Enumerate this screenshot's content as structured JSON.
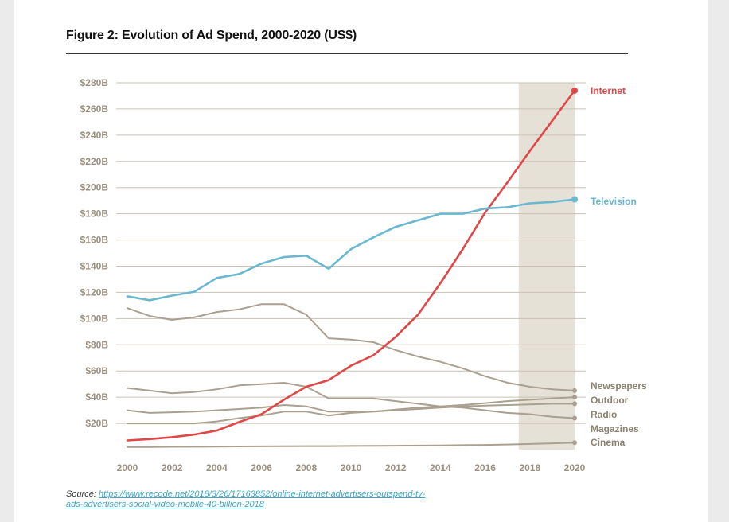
{
  "figure": {
    "title": "Figure 2: Evolution of Ad Spend, 2000-2020 (US$)",
    "source_prefix": "Source: ",
    "source_link": "https://www.recode.net/2018/3/26/17163852/online-internet-advertisers-outspend-tv-ads-advertisers-social-video-mobile-40-billion-2018"
  },
  "chart_data": {
    "type": "line",
    "title": "Figure 2: Evolution of Ad Spend, 2000-2020 (US$)",
    "xlabel": "",
    "ylabel": "",
    "x": [
      2000,
      2001,
      2002,
      2003,
      2004,
      2005,
      2006,
      2007,
      2008,
      2009,
      2010,
      2011,
      2012,
      2013,
      2014,
      2015,
      2016,
      2017,
      2018,
      2019,
      2020
    ],
    "xticks": [
      "2000",
      "2002",
      "2004",
      "2006",
      "2008",
      "2010",
      "2012",
      "2014",
      "2016",
      "2018",
      "2020"
    ],
    "ylim": [
      0,
      280
    ],
    "yticks": [
      "$20B",
      "$40B",
      "$60B",
      "$80B",
      "$100B",
      "$120B",
      "$140B",
      "$160B",
      "$180B",
      "$200B",
      "$220B",
      "$240B",
      "$260B",
      "$280B"
    ],
    "ytick_values": [
      20,
      40,
      60,
      80,
      100,
      120,
      140,
      160,
      180,
      200,
      220,
      240,
      260,
      280
    ],
    "highlight_range": [
      2017.5,
      2020
    ],
    "highlight_color": "#e6e1d6",
    "grid": "horizontal",
    "series": [
      {
        "name": "Internet",
        "color": "#e04848",
        "emphasis": true,
        "values": [
          7,
          8,
          9.5,
          11.5,
          14.5,
          21,
          27,
          38,
          48,
          53,
          64,
          72,
          86,
          103,
          127,
          153,
          181,
          204,
          228,
          251,
          274
        ]
      },
      {
        "name": "Television",
        "color": "#6ab8d0",
        "emphasis": true,
        "values": [
          117,
          114,
          117.5,
          120.5,
          131,
          134,
          142,
          147,
          148,
          138,
          153,
          162,
          170,
          175,
          180,
          180,
          184,
          185,
          188,
          189,
          191
        ]
      },
      {
        "name": "Newspapers",
        "color": "#aaa08f",
        "values": [
          108,
          102,
          99,
          101,
          105,
          107,
          111,
          111,
          103,
          85,
          84,
          82,
          76,
          71,
          67,
          62,
          56,
          51,
          48,
          46,
          45
        ]
      },
      {
        "name": "Outdoor",
        "color": "#aaa08f",
        "values": [
          20,
          20,
          20,
          20,
          21.5,
          24,
          26,
          29,
          29,
          26,
          28,
          29,
          30.5,
          32,
          33,
          34,
          35.5,
          37,
          38,
          39,
          40
        ]
      },
      {
        "name": "Radio",
        "color": "#aaa08f",
        "values": [
          47,
          45,
          43,
          44,
          46,
          49,
          50,
          51,
          48,
          39,
          39,
          39,
          37,
          35,
          33,
          32,
          30,
          28,
          27,
          25,
          24
        ]
      },
      {
        "name": "Magazines",
        "color": "#aaa08f",
        "values": [
          30,
          28,
          28.5,
          29,
          30,
          31,
          32,
          34,
          33,
          29,
          29,
          29,
          30,
          31,
          32,
          33,
          33.5,
          34,
          34.5,
          35,
          35
        ]
      },
      {
        "name": "Cinema",
        "color": "#aaa08f",
        "values": [
          2,
          2,
          2.1,
          2.2,
          2.3,
          2.4,
          2.5,
          2.6,
          2.7,
          2.7,
          2.8,
          2.9,
          3,
          3.1,
          3.2,
          3.4,
          3.6,
          3.9,
          4.3,
          4.8,
          5.3
        ]
      }
    ],
    "legend": "right-end labels"
  }
}
